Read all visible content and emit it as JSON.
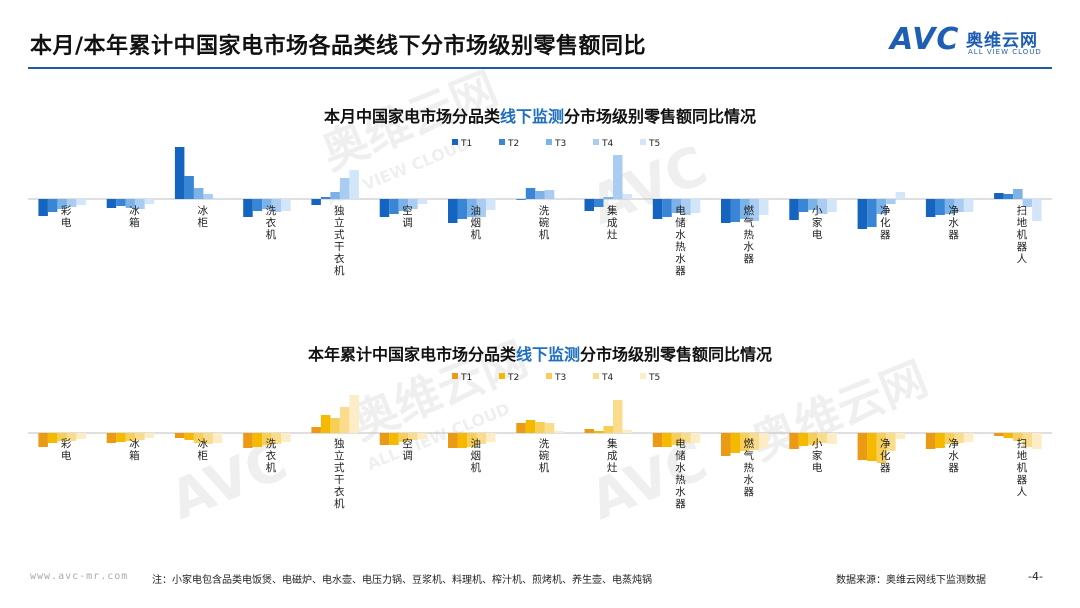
{
  "header": {
    "title": "本月/本年累计中国家电市场各品类线下分市场级别零售额同比",
    "logo_avc": "AVC",
    "logo_cn": "奥维云网",
    "logo_en": "ALL VIEW CLOUD"
  },
  "watermark": {
    "cn": "奥维云网",
    "en": "ALL VIEW CLOUD",
    "avc": "AVC"
  },
  "footer": {
    "url": "www.avc-mr.com",
    "note": "注：小家电包含品类电饭煲、电磁炉、电水壶、电压力锅、豆浆机、料理机、榨汁机、煎烤机、养生壶、电蒸炖锅",
    "source": "数据来源：奥维云网线下监测数据",
    "page": "-4-"
  },
  "colors": {
    "header_rule": "#1f5aa6",
    "blue_series": [
      "#1565c0",
      "#3a86d6",
      "#7bb2e8",
      "#a9cdf2",
      "#d3e6f9"
    ],
    "orange_series": [
      "#eb9a15",
      "#f5b900",
      "#f7cf57",
      "#fadd8c",
      "#fcedc6"
    ]
  },
  "chart_data": [
    {
      "type": "bar",
      "title_parts": [
        "本月中国家电市场分品类",
        "线下监测",
        "分市场级别零售额同比情况"
      ],
      "series_names": [
        "T1",
        "T2",
        "T3",
        "T4",
        "T5"
      ],
      "categories": [
        "彩电",
        "冰箱",
        "冰柜",
        "洗衣机",
        "独立式干衣机",
        "空调",
        "油烟机",
        "洗碗机",
        "集成灶",
        "电储水热水器",
        "燃气热水器",
        "小家电",
        "净化器",
        "净水器",
        "扫地机器人"
      ],
      "series": [
        {
          "name": "T1",
          "values": [
            -17,
            -9,
            52,
            -18,
            -6,
            -18,
            -24,
            0,
            -12,
            -20,
            -24,
            -21,
            -30,
            -18,
            6
          ]
        },
        {
          "name": "T2",
          "values": [
            -13,
            -7,
            23,
            -12,
            2,
            -15,
            -20,
            11,
            -8,
            -18,
            -23,
            -13,
            -28,
            -16,
            5
          ]
        },
        {
          "name": "T3",
          "values": [
            -10,
            -9,
            11,
            -10,
            7,
            -12,
            -18,
            8,
            2,
            -14,
            -20,
            -11,
            -15,
            -15,
            10
          ]
        },
        {
          "name": "T4",
          "values": [
            -8,
            -10,
            5,
            -13,
            21,
            -10,
            -18,
            9,
            44,
            -16,
            -22,
            -15,
            -5,
            -13,
            -8
          ]
        },
        {
          "name": "T5",
          "values": [
            -6,
            -5,
            1,
            -12,
            29,
            -5,
            -11,
            1,
            5,
            -14,
            -16,
            -13,
            7,
            -13,
            -22
          ]
        }
      ],
      "ylim": [
        -35,
        55
      ],
      "legend_position": "top-center",
      "grid": false
    },
    {
      "type": "bar",
      "title_parts": [
        "本年累计中国家电市场分品类",
        "线下监测",
        "分市场级别零售额同比情况"
      ],
      "series_names": [
        "T1",
        "T2",
        "T3",
        "T4",
        "T5"
      ],
      "categories": [
        "彩电",
        "冰箱",
        "冰柜",
        "洗衣机",
        "独立式干衣机",
        "空调",
        "油烟机",
        "洗碗机",
        "集成灶",
        "电储水热水器",
        "燃气热水器",
        "小家电",
        "净化器",
        "净水器",
        "扫地机器人"
      ],
      "series": [
        {
          "name": "T1",
          "values": [
            -14,
            -10,
            -5,
            -15,
            6,
            -12,
            -15,
            10,
            4,
            -14,
            -23,
            -16,
            -27,
            -16,
            -3
          ]
        },
        {
          "name": "T2",
          "values": [
            -10,
            -9,
            -7,
            -14,
            18,
            -12,
            -15,
            13,
            2,
            -14,
            -20,
            -13,
            -28,
            -15,
            -5
          ]
        },
        {
          "name": "T3",
          "values": [
            -8,
            -8,
            -10,
            -12,
            15,
            -9,
            -14,
            11,
            7,
            -12,
            -18,
            -12,
            -30,
            -11,
            -8
          ]
        },
        {
          "name": "T4",
          "values": [
            -8,
            -7,
            -11,
            -11,
            26,
            -7,
            -11,
            10,
            33,
            -10,
            -17,
            -10,
            -18,
            -10,
            -14
          ]
        },
        {
          "name": "T5",
          "values": [
            -6,
            -5,
            -10,
            -9,
            38,
            -6,
            -9,
            2,
            3,
            -10,
            -15,
            -11,
            -6,
            -9,
            -16
          ]
        }
      ],
      "ylim": [
        -35,
        40
      ],
      "legend_position": "top-center",
      "grid": false
    }
  ]
}
